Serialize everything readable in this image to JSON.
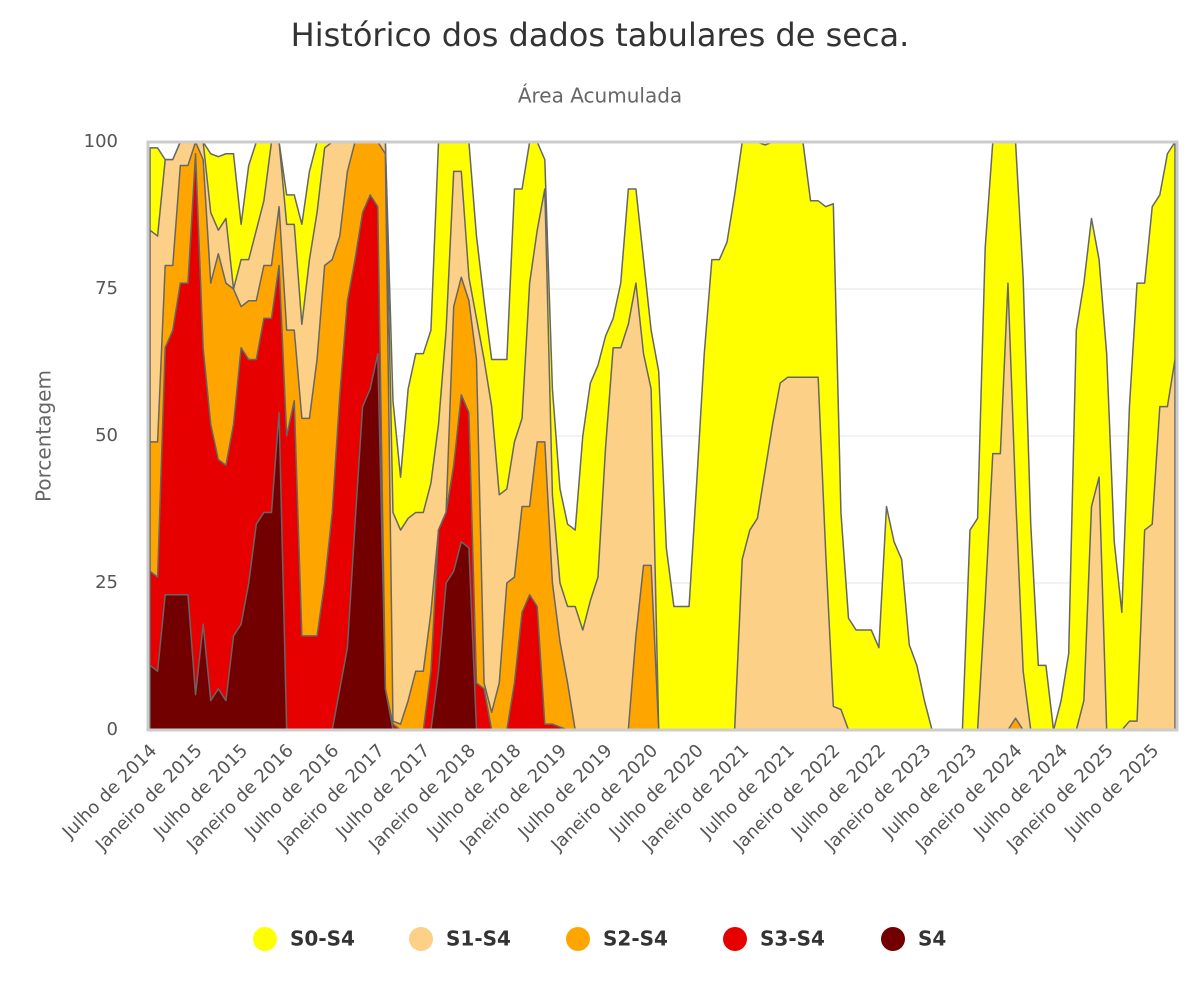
{
  "chart_data": {
    "type": "area",
    "title": "Histórico dos dados tabulares de seca.",
    "subtitle": "Área Acumulada",
    "y_label": "Porcentagem",
    "categories": [
      "Julho de 2014",
      null,
      null,
      null,
      null,
      null,
      "Janeiro de 2015",
      null,
      null,
      null,
      null,
      null,
      "Julho de 2015",
      null,
      null,
      null,
      null,
      null,
      "Janeiro de 2016",
      null,
      null,
      null,
      null,
      null,
      "Julho de 2016",
      null,
      null,
      null,
      null,
      null,
      "Janeiro de 2017",
      null,
      null,
      null,
      null,
      null,
      "Julho de 2017",
      null,
      null,
      null,
      null,
      null,
      "Janeiro de 2018",
      null,
      null,
      null,
      null,
      null,
      "Julho de 2018",
      null,
      null,
      null,
      null,
      null,
      "Janeiro de 2019",
      null,
      null,
      null,
      null,
      null,
      "Julho de 2019",
      null,
      null,
      null,
      null,
      null,
      "Janeiro de 2020",
      null,
      null,
      null,
      null,
      null,
      "Julho de 2020",
      null,
      null,
      null,
      null,
      null,
      "Janeiro de 2021",
      null,
      null,
      null,
      null,
      null,
      "Julho de 2021",
      null,
      null,
      null,
      null,
      null,
      "Janeiro de 2022",
      null,
      null,
      null,
      null,
      null,
      "Julho de 2022",
      null,
      null,
      null,
      null,
      null,
      "Janeiro de 2023",
      null,
      null,
      null,
      null,
      null,
      "Julho de 2023",
      null,
      null,
      null,
      null,
      null,
      "Janeiro de 2024",
      null,
      null,
      null,
      null,
      null,
      "Julho de 2024",
      null,
      null,
      null,
      null,
      null,
      "Janeiro de 2025",
      null,
      null,
      null,
      null,
      null,
      "Julho de 2025",
      null,
      null,
      null
    ],
    "series": [
      {
        "name": "S0-S4",
        "color": "#ffff00",
        "values": [
          99,
          99,
          97,
          97,
          100,
          100,
          100,
          100,
          98,
          97.5,
          98,
          98,
          86,
          96,
          100,
          100,
          100,
          100,
          91,
          91,
          86,
          95,
          100,
          100,
          100,
          100,
          100,
          100,
          100,
          100,
          100,
          100,
          56,
          43,
          58,
          64,
          64,
          68,
          100,
          100,
          100,
          100,
          100,
          84,
          73,
          63,
          63,
          63,
          92,
          92,
          100,
          100,
          97,
          58,
          41,
          35,
          34,
          50,
          59,
          62,
          67,
          70,
          76,
          92,
          92,
          80,
          68,
          61,
          31,
          21,
          21,
          21,
          42,
          64,
          80,
          80,
          83,
          91,
          100,
          100,
          100,
          99.5,
          100,
          100,
          100,
          100,
          100,
          90,
          90,
          89,
          89.5,
          37,
          19,
          17,
          17,
          17,
          14,
          38,
          32,
          29,
          14.5,
          11,
          5,
          0,
          0,
          0,
          0,
          0,
          34,
          36,
          82,
          100,
          100,
          100,
          100,
          77,
          35,
          11,
          11,
          0,
          5,
          13,
          68,
          76,
          87,
          80,
          64,
          32,
          20,
          55,
          76,
          76,
          89,
          91,
          98,
          100
        ]
      },
      {
        "name": "S1-S4",
        "color": "#fcd086",
        "values": [
          85,
          84,
          97,
          97,
          100,
          100,
          100,
          100,
          88,
          85,
          87,
          75,
          80,
          80,
          85,
          90,
          100,
          100,
          86,
          86,
          69,
          80,
          88,
          99,
          100,
          100,
          100,
          100,
          100,
          100,
          100,
          100,
          37,
          34,
          36,
          37,
          37,
          42,
          52,
          68,
          95,
          95,
          77,
          70,
          63,
          55,
          40,
          41,
          49,
          53,
          76,
          85,
          92,
          40,
          25,
          21,
          21,
          17,
          22,
          26,
          48,
          65,
          65,
          69,
          76,
          64,
          58,
          0,
          0,
          0,
          0,
          0,
          0,
          0,
          0,
          0,
          0,
          0,
          29,
          34,
          36,
          44,
          52,
          59,
          60,
          60,
          60,
          60,
          60,
          30,
          4,
          3.5,
          0,
          0,
          0,
          0,
          0,
          0,
          0,
          0,
          0,
          0,
          0,
          0,
          0,
          0,
          0,
          0,
          0,
          0,
          22,
          47,
          47,
          76,
          40,
          10,
          0,
          0,
          0,
          0,
          0,
          0,
          0,
          5,
          38,
          43,
          0,
          0,
          0,
          1.5,
          1.5,
          34,
          35,
          55,
          55,
          63
        ]
      },
      {
        "name": "S2-S4",
        "color": "#ffa500",
        "values": [
          49,
          49,
          79,
          79,
          96,
          96,
          100,
          97,
          76,
          81,
          76,
          75,
          72,
          73,
          73,
          79,
          79,
          89,
          68,
          68,
          53,
          53,
          63,
          79,
          80,
          84,
          95,
          100,
          100,
          100,
          100,
          98,
          1.5,
          1,
          5,
          10,
          10,
          20,
          34,
          37,
          72,
          77,
          73,
          63,
          8,
          3,
          8,
          25,
          26,
          38,
          38,
          49,
          49,
          25,
          15,
          8,
          0,
          0,
          0,
          0,
          0,
          0,
          0,
          0,
          16,
          28,
          28,
          0,
          0,
          0,
          0,
          0,
          0,
          0,
          0,
          0,
          0,
          0,
          0,
          0,
          0,
          0,
          0,
          0,
          0,
          0,
          0,
          0,
          0,
          0,
          0,
          0,
          0,
          0,
          0,
          0,
          0,
          0,
          0,
          0,
          0,
          0,
          0,
          0,
          0,
          0,
          0,
          0,
          0,
          0,
          0,
          0,
          0,
          0,
          2,
          0,
          0,
          0,
          0,
          0,
          0,
          0,
          0,
          0,
          0,
          0,
          0,
          0,
          0,
          0,
          0,
          0,
          0,
          0,
          0,
          0
        ]
      },
      {
        "name": "S3-S4",
        "color": "#e60000",
        "values": [
          27,
          26,
          65,
          68,
          76,
          76,
          98,
          65,
          52,
          46,
          45,
          52,
          65,
          63,
          63,
          70,
          70,
          79,
          50,
          56,
          16,
          16,
          16,
          25,
          37,
          57,
          73,
          80,
          88,
          91,
          89,
          7,
          1,
          0,
          0,
          0,
          0,
          10,
          34,
          37,
          45,
          57,
          54,
          8,
          7,
          0,
          0,
          0,
          8,
          20,
          23,
          21,
          1,
          1,
          0.5,
          0,
          0,
          0,
          0,
          0,
          0,
          0,
          0,
          0,
          0,
          0,
          0,
          0,
          0,
          0,
          0,
          0,
          0,
          0,
          0,
          0,
          0,
          0,
          0,
          0,
          0,
          0,
          0,
          0,
          0,
          0,
          0,
          0,
          0,
          0,
          0,
          0,
          0,
          0,
          0,
          0,
          0,
          0,
          0,
          0,
          0,
          0,
          0,
          0,
          0,
          0,
          0,
          0,
          0,
          0,
          0,
          0,
          0,
          0,
          0,
          0,
          0,
          0,
          0,
          0,
          0,
          0,
          0,
          0,
          0,
          0,
          0,
          0,
          0,
          0,
          0,
          0,
          0,
          0,
          0,
          0
        ]
      },
      {
        "name": "S4",
        "color": "#730000",
        "values": [
          11,
          10,
          23,
          23,
          23,
          23,
          6,
          18,
          5,
          7,
          5,
          16,
          18,
          25,
          35,
          37,
          37,
          54,
          0,
          0,
          0,
          0,
          0,
          0,
          0,
          7,
          14,
          35,
          55,
          58,
          64,
          7,
          0,
          0,
          0,
          0,
          0,
          0,
          10,
          25,
          27,
          32,
          31,
          0,
          0,
          0,
          0,
          0,
          0,
          0,
          0,
          0,
          0,
          0,
          0,
          0,
          0,
          0,
          0,
          0,
          0,
          0,
          0,
          0,
          0,
          0,
          0,
          0,
          0,
          0,
          0,
          0,
          0,
          0,
          0,
          0,
          0,
          0,
          0,
          0,
          0,
          0,
          0,
          0,
          0,
          0,
          0,
          0,
          0,
          0,
          0,
          0,
          0,
          0,
          0,
          0,
          0,
          0,
          0,
          0,
          0,
          0,
          0,
          0,
          0,
          0,
          0,
          0,
          0,
          0,
          0,
          0,
          0,
          0,
          0,
          0,
          0,
          0,
          0,
          0,
          0,
          0,
          0,
          0,
          0,
          0,
          0,
          0,
          0,
          0,
          0,
          0,
          0,
          0,
          0,
          0
        ]
      }
    ],
    "ylim": [
      0,
      100
    ],
    "yticks": [
      0,
      25,
      50,
      75,
      100
    ],
    "grid": true,
    "legend": "bottom"
  }
}
